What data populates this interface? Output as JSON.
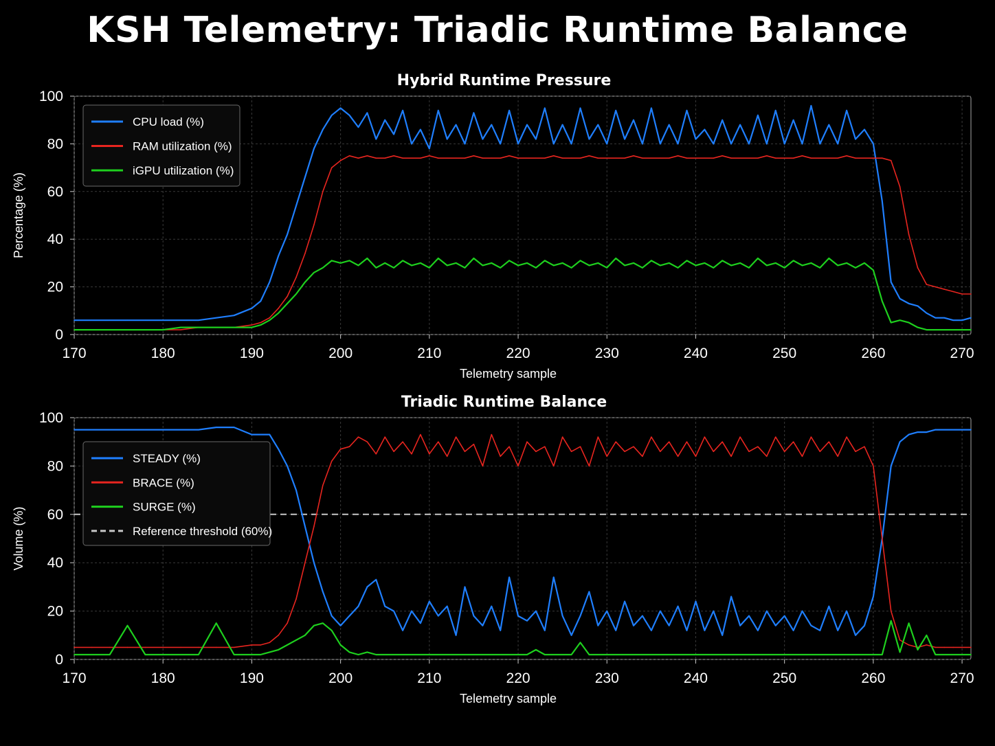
{
  "title": "KSH Telemetry: Triadic Runtime Balance",
  "colors": {
    "background": "#000000",
    "cpu": "#1f7fff",
    "ram": "#e8251f",
    "igpu": "#1ed01e",
    "threshold": "#c8c8c8",
    "grid": "#3a3a3a"
  },
  "chart_data": [
    {
      "type": "line",
      "title": "Hybrid Runtime Pressure",
      "xlabel": "Telemetry sample",
      "ylabel": "Percentage (%)",
      "xlim": [
        170,
        271
      ],
      "ylim": [
        0,
        100
      ],
      "xticks": [
        170,
        180,
        190,
        200,
        210,
        220,
        230,
        240,
        250,
        260,
        270
      ],
      "yticks": [
        0,
        20,
        40,
        60,
        80,
        100
      ],
      "grid": true,
      "legend_position": "top-left",
      "x": [
        170,
        172,
        174,
        176,
        178,
        180,
        182,
        184,
        186,
        188,
        190,
        191,
        192,
        193,
        194,
        195,
        196,
        197,
        198,
        199,
        200,
        201,
        202,
        203,
        204,
        205,
        206,
        207,
        208,
        209,
        210,
        211,
        212,
        213,
        214,
        215,
        216,
        217,
        218,
        219,
        220,
        221,
        222,
        223,
        224,
        225,
        226,
        227,
        228,
        229,
        230,
        231,
        232,
        233,
        234,
        235,
        236,
        237,
        238,
        239,
        240,
        241,
        242,
        243,
        244,
        245,
        246,
        247,
        248,
        249,
        250,
        251,
        252,
        253,
        254,
        255,
        256,
        257,
        258,
        259,
        260,
        261,
        262,
        263,
        264,
        265,
        266,
        267,
        268,
        269,
        270,
        271
      ],
      "series": [
        {
          "name": "CPU load (%)",
          "color": "#1f7fff",
          "values": [
            6,
            6,
            6,
            6,
            6,
            6,
            6,
            6,
            7,
            8,
            11,
            14,
            22,
            33,
            42,
            54,
            66,
            78,
            86,
            92,
            95,
            92,
            87,
            93,
            82,
            90,
            84,
            94,
            80,
            86,
            78,
            94,
            82,
            88,
            80,
            93,
            82,
            88,
            80,
            94,
            80,
            88,
            82,
            95,
            80,
            88,
            80,
            95,
            82,
            88,
            80,
            94,
            82,
            90,
            80,
            95,
            80,
            88,
            80,
            94,
            82,
            86,
            80,
            90,
            80,
            88,
            80,
            92,
            80,
            94,
            80,
            90,
            80,
            96,
            80,
            88,
            80,
            94,
            82,
            86,
            80,
            56,
            22,
            15,
            13,
            12,
            9,
            7,
            7,
            6,
            6,
            7
          ]
        },
        {
          "name": "RAM utilization (%)",
          "color": "#e8251f",
          "values": [
            2,
            2,
            2,
            2,
            2,
            2,
            2,
            3,
            3,
            3,
            4,
            5,
            7,
            11,
            16,
            24,
            34,
            46,
            60,
            70,
            73,
            75,
            74,
            75,
            74,
            74,
            75,
            74,
            74,
            74,
            75,
            74,
            74,
            74,
            74,
            75,
            74,
            74,
            74,
            75,
            74,
            74,
            74,
            74,
            75,
            74,
            74,
            74,
            75,
            74,
            74,
            74,
            74,
            75,
            74,
            74,
            74,
            74,
            75,
            74,
            74,
            74,
            74,
            75,
            74,
            74,
            74,
            74,
            75,
            74,
            74,
            74,
            75,
            74,
            74,
            74,
            74,
            75,
            74,
            74,
            74,
            74,
            73,
            62,
            42,
            28,
            21,
            20,
            19,
            18,
            17,
            17
          ]
        },
        {
          "name": "iGPU utilization (%)",
          "color": "#1ed01e",
          "values": [
            2,
            2,
            2,
            2,
            2,
            2,
            3,
            3,
            3,
            3,
            3,
            4,
            6,
            9,
            13,
            17,
            22,
            26,
            28,
            31,
            30,
            31,
            29,
            32,
            28,
            30,
            28,
            31,
            29,
            30,
            28,
            32,
            29,
            30,
            28,
            32,
            29,
            30,
            28,
            31,
            29,
            30,
            28,
            31,
            29,
            30,
            28,
            31,
            29,
            30,
            28,
            32,
            29,
            30,
            28,
            31,
            29,
            30,
            28,
            31,
            29,
            30,
            28,
            31,
            29,
            30,
            28,
            32,
            29,
            30,
            28,
            31,
            29,
            30,
            28,
            32,
            29,
            30,
            28,
            30,
            27,
            14,
            5,
            6,
            5,
            3,
            2,
            2,
            2,
            2,
            2,
            2
          ]
        }
      ]
    },
    {
      "type": "line",
      "title": "Triadic Runtime Balance",
      "xlabel": "Telemetry sample",
      "ylabel": "Volume (%)",
      "xlim": [
        170,
        271
      ],
      "ylim": [
        0,
        100
      ],
      "xticks": [
        170,
        180,
        190,
        200,
        210,
        220,
        230,
        240,
        250,
        260,
        270
      ],
      "yticks": [
        0,
        20,
        40,
        60,
        80,
        100
      ],
      "grid": true,
      "legend_position": "upper-left",
      "reference_line": {
        "label": "Reference threshold (60%)",
        "y": 60,
        "color": "#c8c8c8",
        "style": "dashed"
      },
      "x": [
        170,
        172,
        174,
        176,
        178,
        180,
        182,
        184,
        186,
        188,
        190,
        191,
        192,
        193,
        194,
        195,
        196,
        197,
        198,
        199,
        200,
        201,
        202,
        203,
        204,
        205,
        206,
        207,
        208,
        209,
        210,
        211,
        212,
        213,
        214,
        215,
        216,
        217,
        218,
        219,
        220,
        221,
        222,
        223,
        224,
        225,
        226,
        227,
        228,
        229,
        230,
        231,
        232,
        233,
        234,
        235,
        236,
        237,
        238,
        239,
        240,
        241,
        242,
        243,
        244,
        245,
        246,
        247,
        248,
        249,
        250,
        251,
        252,
        253,
        254,
        255,
        256,
        257,
        258,
        259,
        260,
        261,
        262,
        263,
        264,
        265,
        266,
        267,
        268,
        269,
        270,
        271
      ],
      "series": [
        {
          "name": "STEADY (%)",
          "color": "#1f7fff",
          "values": [
            95,
            95,
            95,
            95,
            95,
            95,
            95,
            95,
            96,
            96,
            93,
            93,
            93,
            87,
            80,
            70,
            55,
            40,
            28,
            18,
            14,
            18,
            22,
            30,
            33,
            22,
            20,
            12,
            20,
            15,
            24,
            18,
            22,
            10,
            30,
            18,
            14,
            22,
            12,
            34,
            18,
            16,
            20,
            12,
            34,
            18,
            10,
            18,
            28,
            14,
            20,
            12,
            24,
            14,
            18,
            12,
            20,
            14,
            22,
            12,
            24,
            12,
            20,
            10,
            26,
            14,
            18,
            12,
            20,
            14,
            18,
            12,
            20,
            14,
            12,
            22,
            12,
            20,
            10,
            14,
            26,
            50,
            80,
            90,
            93,
            94,
            94,
            95,
            95,
            95,
            95,
            95
          ]
        },
        {
          "name": "BRACE (%)",
          "color": "#e8251f",
          "values": [
            5,
            5,
            5,
            5,
            5,
            5,
            5,
            5,
            5,
            5,
            6,
            6,
            7,
            10,
            15,
            25,
            40,
            55,
            72,
            82,
            87,
            88,
            92,
            90,
            85,
            92,
            86,
            90,
            85,
            93,
            85,
            90,
            84,
            92,
            86,
            89,
            80,
            93,
            84,
            88,
            80,
            90,
            86,
            88,
            80,
            92,
            86,
            88,
            80,
            92,
            84,
            90,
            86,
            88,
            84,
            92,
            86,
            90,
            84,
            90,
            84,
            92,
            86,
            90,
            84,
            92,
            86,
            88,
            84,
            92,
            86,
            90,
            84,
            92,
            86,
            90,
            84,
            92,
            86,
            88,
            80,
            50,
            20,
            8,
            6,
            5,
            6,
            5,
            5,
            5,
            5,
            5
          ]
        },
        {
          "name": "SURGE (%)",
          "color": "#1ed01e",
          "values": [
            2,
            2,
            2,
            14,
            2,
            2,
            2,
            2,
            15,
            2,
            2,
            2,
            3,
            4,
            6,
            8,
            10,
            14,
            15,
            12,
            6,
            3,
            2,
            3,
            2,
            2,
            2,
            2,
            2,
            2,
            2,
            2,
            2,
            2,
            2,
            2,
            2,
            2,
            2,
            2,
            2,
            2,
            4,
            2,
            2,
            2,
            2,
            7,
            2,
            2,
            2,
            2,
            2,
            2,
            2,
            2,
            2,
            2,
            2,
            2,
            2,
            2,
            2,
            2,
            2,
            2,
            2,
            2,
            2,
            2,
            2,
            2,
            2,
            2,
            2,
            2,
            2,
            2,
            2,
            2,
            2,
            2,
            16,
            3,
            15,
            4,
            10,
            2,
            2,
            2,
            2,
            2
          ]
        }
      ]
    }
  ]
}
